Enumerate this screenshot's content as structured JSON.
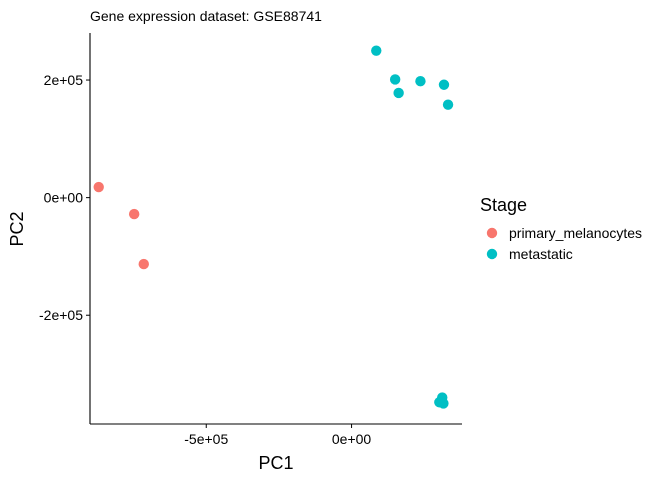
{
  "chart_data": {
    "type": "scatter",
    "title": "Gene expression dataset: GSE88741",
    "xlabel": "PC1",
    "ylabel": "PC2",
    "xlim": [
      -900000,
      380000
    ],
    "ylim": [
      -385000,
      280000
    ],
    "x_ticks": [
      {
        "value": -500000,
        "label": "-5e+05"
      },
      {
        "value": 0,
        "label": "0e+00"
      }
    ],
    "y_ticks": [
      {
        "value": 200000,
        "label": "2e+05"
      },
      {
        "value": 0,
        "label": "0e+00"
      },
      {
        "value": -200000,
        "label": "-2e+05"
      }
    ],
    "grid": false,
    "legend": {
      "title": "Stage",
      "position": "right"
    },
    "series": [
      {
        "name": "primary_melanocytes",
        "color": "#F8766D",
        "points": [
          {
            "x": -870000,
            "y": 18000
          },
          {
            "x": -748000,
            "y": -28000
          },
          {
            "x": -715000,
            "y": -113000
          }
        ]
      },
      {
        "name": "metastatic",
        "color": "#00BFC4",
        "points": [
          {
            "x": 85000,
            "y": 250000
          },
          {
            "x": 150000,
            "y": 201000
          },
          {
            "x": 162000,
            "y": 178000
          },
          {
            "x": 237000,
            "y": 198000
          },
          {
            "x": 318000,
            "y": 192000
          },
          {
            "x": 332000,
            "y": 158000
          },
          {
            "x": 312000,
            "y": -340000
          },
          {
            "x": 302000,
            "y": -348000
          },
          {
            "x": 316000,
            "y": -350000
          }
        ]
      }
    ]
  }
}
